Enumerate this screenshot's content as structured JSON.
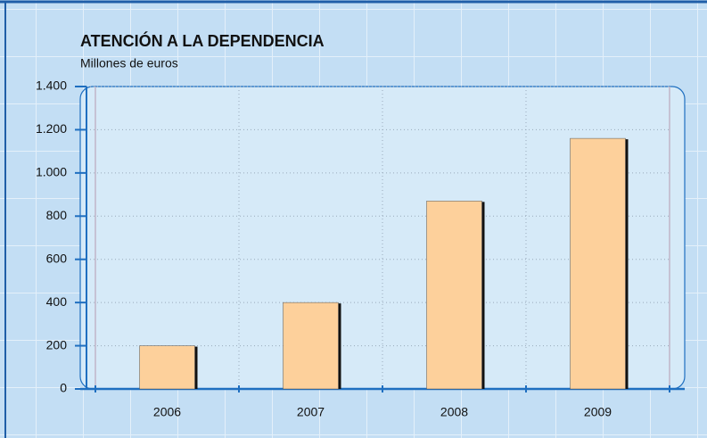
{
  "chart_data": {
    "type": "bar",
    "title": "ATENCIÓN A LA DEPENDENCIA",
    "subtitle": "Millones de euros",
    "categories": [
      "2006",
      "2007",
      "2008",
      "2009"
    ],
    "values": [
      200,
      400,
      870,
      1160
    ],
    "color": "#fdd09b",
    "ylim": [
      0,
      1400
    ],
    "yticks": [
      0,
      200,
      400,
      600,
      800,
      {
        "value": 1000,
        "label": "1.000"
      },
      {
        "value": 1200,
        "label": "1.200"
      },
      {
        "value": 1400,
        "label": "1.400"
      }
    ],
    "grid": true
  }
}
